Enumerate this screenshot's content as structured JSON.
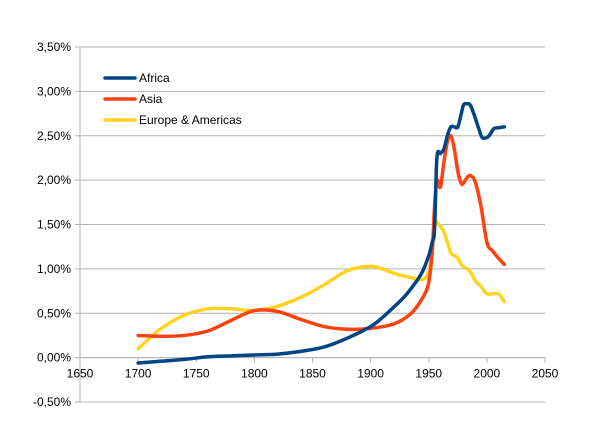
{
  "chart_data": {
    "type": "line",
    "title": "",
    "xlabel": "",
    "ylabel": "",
    "xlim": [
      1650,
      2050
    ],
    "ylim": [
      -0.005,
      0.035
    ],
    "x_ticks": [
      "1650",
      "1700",
      "1750",
      "1800",
      "1850",
      "1900",
      "1950",
      "2000",
      "2050"
    ],
    "y_ticks": [
      "-0,50%",
      "0,00%",
      "0,50%",
      "1,00%",
      "1,50%",
      "2,00%",
      "2,50%",
      "3,00%",
      "3,50%"
    ],
    "grid": "horizontal",
    "legend_position": "top-left",
    "series": [
      {
        "name": "Africa",
        "color": "#004586",
        "x": [
          1700,
          1720,
          1740,
          1760,
          1780,
          1800,
          1820,
          1840,
          1860,
          1880,
          1900,
          1910,
          1920,
          1930,
          1940,
          1945,
          1950,
          1953,
          1955,
          1957,
          1960,
          1963,
          1966,
          1969,
          1972,
          1975,
          1978,
          1980,
          1983,
          1986,
          1990,
          1993,
          1996,
          2000,
          2003,
          2006,
          2010,
          2015
        ],
        "y": [
          -0.0006,
          -0.0004,
          -0.0002,
          0.0001,
          0.0002,
          0.0003,
          0.0004,
          0.0007,
          0.0012,
          0.0022,
          0.0035,
          0.0045,
          0.0057,
          0.007,
          0.0087,
          0.0098,
          0.0115,
          0.013,
          0.0145,
          0.0225,
          0.023,
          0.0235,
          0.025,
          0.026,
          0.026,
          0.026,
          0.0275,
          0.0285,
          0.0286,
          0.0284,
          0.027,
          0.0258,
          0.0248,
          0.0248,
          0.0252,
          0.0258,
          0.0259,
          0.026
        ]
      },
      {
        "name": "Asia",
        "color": "#ff420e",
        "x": [
          1700,
          1720,
          1740,
          1760,
          1780,
          1800,
          1820,
          1840,
          1860,
          1880,
          1900,
          1920,
          1935,
          1945,
          1950,
          1953,
          1955,
          1957,
          1960,
          1963,
          1966,
          1969,
          1972,
          1975,
          1978,
          1980,
          1983,
          1986,
          1990,
          1995,
          2000,
          2005,
          2010,
          2015
        ],
        "y": [
          0.0025,
          0.0024,
          0.0025,
          0.003,
          0.0042,
          0.0053,
          0.0052,
          0.0043,
          0.0035,
          0.0032,
          0.0033,
          0.0038,
          0.005,
          0.0068,
          0.0085,
          0.012,
          0.017,
          0.02,
          0.0192,
          0.022,
          0.0243,
          0.025,
          0.0235,
          0.021,
          0.0196,
          0.0197,
          0.0203,
          0.0205,
          0.0198,
          0.017,
          0.013,
          0.012,
          0.0112,
          0.0105
        ]
      },
      {
        "name": "Europe & Americas",
        "color": "#ffd320",
        "x": [
          1700,
          1710,
          1720,
          1740,
          1760,
          1780,
          1800,
          1820,
          1840,
          1860,
          1880,
          1900,
          1910,
          1920,
          1935,
          1945,
          1950,
          1953,
          1955,
          1957,
          1960,
          1963,
          1966,
          1969,
          1972,
          1975,
          1978,
          1980,
          1985,
          1990,
          1995,
          2000,
          2005,
          2010,
          2015
        ],
        "y": [
          0.001,
          0.0022,
          0.0033,
          0.0048,
          0.0055,
          0.0055,
          0.0053,
          0.0058,
          0.0068,
          0.0082,
          0.0098,
          0.0103,
          0.01,
          0.0095,
          0.009,
          0.0088,
          0.0097,
          0.012,
          0.0155,
          0.0152,
          0.0148,
          0.0142,
          0.013,
          0.0118,
          0.0115,
          0.0112,
          0.0105,
          0.0102,
          0.0098,
          0.0087,
          0.008,
          0.0072,
          0.0072,
          0.0072,
          0.0063
        ]
      }
    ]
  }
}
